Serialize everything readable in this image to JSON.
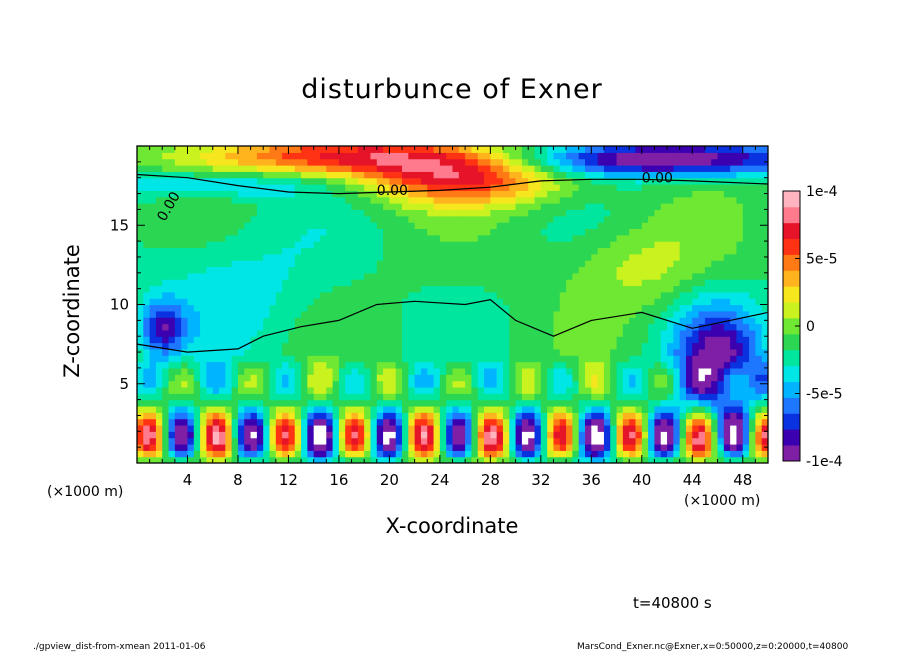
{
  "chart_data": {
    "type": "heatmap",
    "title": "disturbunce of Exner",
    "xlabel": "X-coordinate",
    "ylabel": "Z-coordinate",
    "x_unit": "(×1000 m)",
    "x_unit_secondary": "(×1000 m)",
    "xlim": [
      0,
      50
    ],
    "ylim": [
      0,
      20
    ],
    "x_ticks": [
      "4",
      "8",
      "12",
      "16",
      "20",
      "24",
      "28",
      "32",
      "36",
      "40",
      "44",
      "48"
    ],
    "y_ticks": [
      "5",
      "10",
      "15"
    ],
    "colorbar": {
      "range": [
        -0.0001,
        0.0001
      ],
      "tick_labels": [
        "1e-4",
        "5e-5",
        "0",
        "-5e-5",
        "-1e-4"
      ],
      "colors": [
        "#7f1fa6",
        "#3b00b0",
        "#0a32e0",
        "#1e78ff",
        "#00b4ff",
        "#00e6e6",
        "#00e69e",
        "#2bd653",
        "#6ee833",
        "#c9f21f",
        "#f5e61e",
        "#ffb41e",
        "#ff7a14",
        "#ff3214",
        "#e61428",
        "#ff7a8c",
        "#ffb4c0"
      ]
    },
    "contour_labels": [
      "0.00",
      "0.00",
      "0.00"
    ],
    "annotations": {
      "time": "t=40800 s",
      "footer_left": "./gpview_dist-from-xmean  2011-01-06",
      "footer_right": "MarsCond_Exner.nc@Exner,x=0:50000,z=0:20000,t=40800"
    }
  }
}
